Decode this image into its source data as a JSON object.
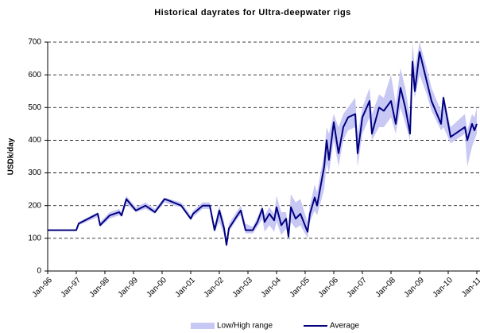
{
  "chart_data": {
    "type": "line",
    "title": "Historical dayrates for Ultra-deepwater rigs",
    "y_label": "USDk/day",
    "ylim": [
      0,
      700
    ],
    "yticks": [
      0,
      100,
      200,
      300,
      400,
      500,
      600,
      700
    ],
    "grid": true,
    "legend": "bottom",
    "xlim": [
      "1996-01",
      "2011-01"
    ],
    "xticks": [
      {
        "value": "1996-01",
        "label": "Jan-96"
      },
      {
        "value": "1997-01",
        "label": "Jan-97"
      },
      {
        "value": "1998-01",
        "label": "Jan-98"
      },
      {
        "value": "1999-01",
        "label": "Jan-99"
      },
      {
        "value": "2000-01",
        "label": "Jan-00"
      },
      {
        "value": "2001-01",
        "label": "Jan-01"
      },
      {
        "value": "2002-01",
        "label": "Jan-02"
      },
      {
        "value": "2003-01",
        "label": "Jan-03"
      },
      {
        "value": "2004-01",
        "label": "Jan-04"
      },
      {
        "value": "2005-01",
        "label": "Jan-05"
      },
      {
        "value": "2006-01",
        "label": "Jan-06"
      },
      {
        "value": "2007-01",
        "label": "Jan-07"
      },
      {
        "value": "2008-01",
        "label": "Jan-08"
      },
      {
        "value": "2009-01",
        "label": "Jan-09"
      },
      {
        "value": "2010-01",
        "label": "Jan-10"
      },
      {
        "value": "2011-01",
        "label": "Jan-11"
      }
    ],
    "x": [
      "1996-01",
      "1997-01",
      "1997-02",
      "1997-10",
      "1997-11",
      "1998-03",
      "1998-07",
      "1998-08",
      "1998-10",
      "1999-02",
      "1999-06",
      "1999-10",
      "2000-02",
      "2000-04",
      "2000-09",
      "2001-01",
      "2001-02",
      "2001-06",
      "2001-09",
      "2001-11",
      "2002-01",
      "2002-03",
      "2002-04",
      "2002-05",
      "2002-09",
      "2002-10",
      "2002-12",
      "2003-03",
      "2003-05",
      "2003-07",
      "2003-08",
      "2003-10",
      "2003-12",
      "2004-01",
      "2004-03",
      "2004-05",
      "2004-06",
      "2004-07",
      "2004-09",
      "2004-11",
      "2005-02",
      "2005-03",
      "2005-05",
      "2005-06",
      "2005-09",
      "2005-10",
      "2005-11",
      "2006-01",
      "2006-03",
      "2006-05",
      "2006-07",
      "2006-10",
      "2006-11",
      "2007-01",
      "2007-04",
      "2007-05",
      "2007-08",
      "2007-10",
      "2008-01",
      "2008-03",
      "2008-05",
      "2008-07",
      "2008-09",
      "2008-10",
      "2008-11",
      "2009-01",
      "2009-04",
      "2009-06",
      "2009-10",
      "2009-11",
      "2010-02",
      "2010-08",
      "2010-09",
      "2010-11",
      "2010-12",
      "2011-01"
    ],
    "series": [
      {
        "name": "Low/High range",
        "color": "#c8c8f5",
        "low": [
          125,
          125,
          140,
          165,
          135,
          160,
          170,
          165,
          205,
          180,
          190,
          175,
          210,
          205,
          195,
          155,
          165,
          190,
          190,
          120,
          150,
          110,
          75,
          120,
          165,
          170,
          115,
          115,
          135,
          160,
          120,
          140,
          120,
          150,
          110,
          130,
          95,
          150,
          130,
          140,
          100,
          150,
          185,
          170,
          250,
          330,
          300,
          400,
          320,
          400,
          430,
          440,
          320,
          420,
          470,
          400,
          440,
          440,
          470,
          420,
          500,
          450,
          400,
          580,
          530,
          600,
          540,
          490,
          430,
          440,
          390,
          420,
          320,
          380,
          400,
          420
        ],
        "high": [
          125,
          125,
          150,
          180,
          150,
          180,
          190,
          180,
          230,
          195,
          210,
          190,
          225,
          220,
          210,
          170,
          185,
          210,
          210,
          140,
          200,
          150,
          95,
          145,
          190,
          200,
          145,
          135,
          165,
          200,
          170,
          195,
          175,
          230,
          180,
          180,
          125,
          235,
          210,
          220,
          150,
          200,
          265,
          240,
          360,
          440,
          420,
          480,
          440,
          480,
          500,
          530,
          420,
          500,
          560,
          480,
          540,
          530,
          600,
          510,
          620,
          560,
          470,
          700,
          620,
          700,
          620,
          560,
          490,
          540,
          440,
          480,
          430,
          480,
          470,
          500
        ]
      },
      {
        "name": "Average",
        "color": "#000080",
        "values": [
          125,
          125,
          145,
          175,
          140,
          170,
          180,
          170,
          220,
          185,
          200,
          180,
          220,
          215,
          200,
          160,
          175,
          200,
          200,
          125,
          185,
          130,
          80,
          130,
          175,
          185,
          125,
          125,
          150,
          190,
          150,
          175,
          155,
          195,
          140,
          160,
          105,
          195,
          160,
          175,
          120,
          175,
          225,
          200,
          320,
          400,
          340,
          455,
          360,
          440,
          470,
          480,
          360,
          470,
          520,
          420,
          500,
          490,
          520,
          450,
          560,
          500,
          420,
          640,
          550,
          670,
          580,
          520,
          450,
          530,
          410,
          440,
          400,
          450,
          430,
          450
        ]
      }
    ]
  }
}
